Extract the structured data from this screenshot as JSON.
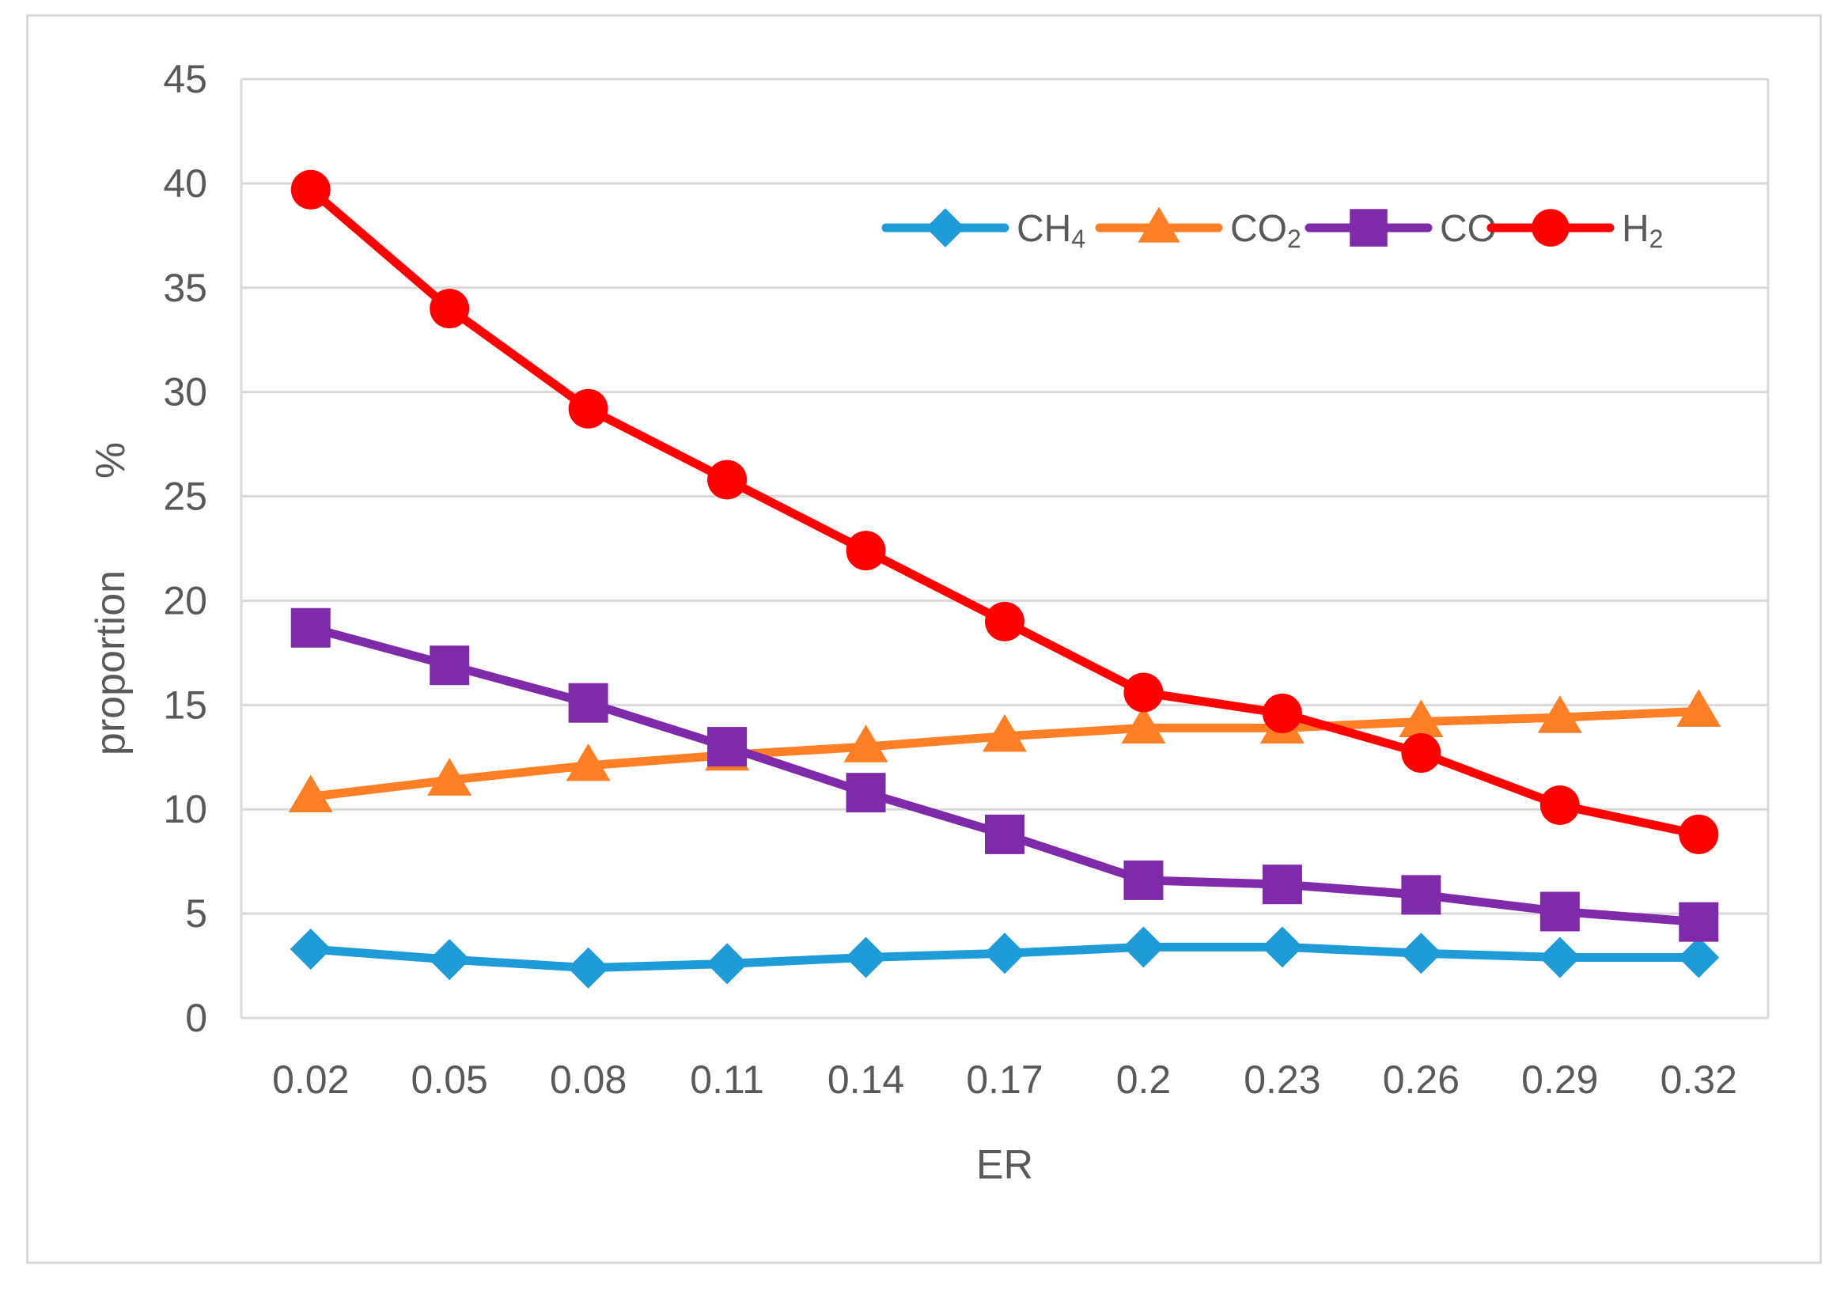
{
  "chart_data": {
    "type": "line",
    "title": "",
    "xlabel": "ER",
    "ylabel": "proportion",
    "ylabel_unit": "%",
    "categories": [
      "0.02",
      "0.05",
      "0.08",
      "0.11",
      "0.14",
      "0.17",
      "0.2",
      "0.23",
      "0.26",
      "0.29",
      "0.32"
    ],
    "ylim": [
      0,
      45
    ],
    "yticks": [
      0,
      5,
      10,
      15,
      20,
      25,
      30,
      35,
      40,
      45
    ],
    "grid": true,
    "legend_position": "top-right",
    "series": [
      {
        "name": "CH4",
        "label_base": "CH",
        "label_sub": "4",
        "color": "#1f9bd7",
        "marker": "diamond",
        "values": [
          3.3,
          2.8,
          2.4,
          2.6,
          2.9,
          3.1,
          3.4,
          3.4,
          3.1,
          2.9,
          2.9
        ]
      },
      {
        "name": "CO2",
        "label_base": "CO",
        "label_sub": "2",
        "color": "#ff7f27",
        "marker": "triangle",
        "values": [
          10.6,
          11.4,
          12.1,
          12.6,
          13.0,
          13.5,
          13.9,
          13.9,
          14.2,
          14.4,
          14.7
        ]
      },
      {
        "name": "CO",
        "label_base": "CO",
        "label_sub": "",
        "color": "#7f2aa8",
        "marker": "square",
        "values": [
          18.7,
          16.9,
          15.1,
          13.0,
          10.8,
          8.8,
          6.6,
          6.4,
          5.9,
          5.1,
          4.6
        ]
      },
      {
        "name": "H2",
        "label_base": "H",
        "label_sub": "2",
        "color": "#ff0000",
        "marker": "circle",
        "values": [
          39.7,
          34.0,
          29.2,
          25.8,
          22.4,
          19.0,
          15.6,
          14.6,
          12.7,
          10.2,
          8.8
        ]
      }
    ]
  }
}
